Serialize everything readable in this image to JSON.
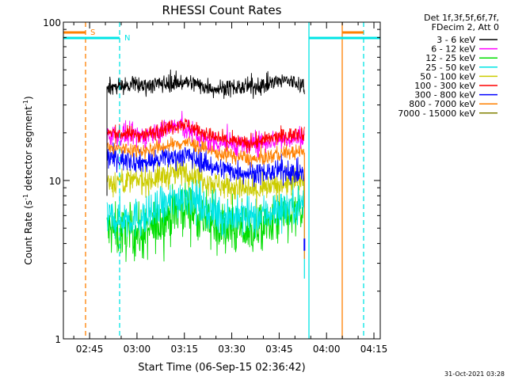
{
  "chart_data": {
    "type": "line",
    "title": "RHESSI Count Rates",
    "xlabel": "Start Time (06-Sep-15 02:36:42)",
    "ylabel_main": "Count Rate (s",
    "ylabel_sup1": "-1",
    "ylabel_mid": " detector segment",
    "ylabel_sup2": "-1",
    "ylabel_end": ")",
    "y_scale": "log",
    "ylim": [
      1,
      100
    ],
    "xlim": [
      "02:36:42",
      "04:17:00"
    ],
    "data_span": [
      "02:50:30",
      "03:53:00"
    ],
    "x_ticks": [
      "02:45",
      "03:00",
      "03:15",
      "03:30",
      "03:45",
      "04:00",
      "04:15"
    ],
    "y_ticks": [
      "1",
      "10",
      "100"
    ],
    "legend_header": [
      "Det 1f,3f,5f,6f,7f,",
      "FDecim 2, Att 0"
    ],
    "legend_position": "right",
    "series": [
      {
        "name": "3 - 6 keV",
        "color": "#000000",
        "keys": [
          [
            0,
            39
          ],
          [
            0.2,
            40
          ],
          [
            0.4,
            42
          ],
          [
            0.55,
            38
          ],
          [
            0.75,
            39
          ],
          [
            0.9,
            43
          ],
          [
            1,
            40
          ]
        ],
        "noise": 0.04
      },
      {
        "name": "6 - 12 keV",
        "color": "#ff00ff",
        "keys": [
          [
            0,
            19.5
          ],
          [
            0.2,
            19
          ],
          [
            0.35,
            22.5
          ],
          [
            0.5,
            18
          ],
          [
            0.7,
            16.5
          ],
          [
            0.85,
            18
          ],
          [
            1,
            19
          ]
        ],
        "noise": 0.05
      },
      {
        "name": "12 - 25 keV",
        "color": "#00dd00",
        "keys": [
          [
            0,
            4.8
          ],
          [
            0.2,
            4.6
          ],
          [
            0.4,
            7
          ],
          [
            0.55,
            5
          ],
          [
            0.75,
            4.8
          ],
          [
            0.9,
            5.8
          ],
          [
            1,
            6.5
          ]
        ],
        "noise": 0.12
      },
      {
        "name": "25 - 50 keV",
        "color": "#00e5e5",
        "keys": [
          [
            0,
            5.8
          ],
          [
            0.2,
            5.8
          ],
          [
            0.4,
            8.2
          ],
          [
            0.55,
            6
          ],
          [
            0.75,
            5.8
          ],
          [
            0.9,
            6.8
          ],
          [
            1,
            7.2
          ]
        ],
        "noise": 0.09
      },
      {
        "name": "50 - 100 keV",
        "color": "#cccc00",
        "keys": [
          [
            0,
            9.8
          ],
          [
            0.2,
            10
          ],
          [
            0.4,
            11.5
          ],
          [
            0.55,
            9.5
          ],
          [
            0.75,
            8.5
          ],
          [
            0.9,
            9.5
          ],
          [
            1,
            10
          ]
        ],
        "noise": 0.06
      },
      {
        "name": "100 - 300 keV",
        "color": "#ff0000",
        "keys": [
          [
            0,
            20
          ],
          [
            0.2,
            19.5
          ],
          [
            0.38,
            23
          ],
          [
            0.55,
            18.5
          ],
          [
            0.72,
            17
          ],
          [
            0.88,
            19
          ],
          [
            1,
            20
          ]
        ],
        "noise": 0.035
      },
      {
        "name": "300 - 800 keV",
        "color": "#0000ff",
        "keys": [
          [
            0,
            14
          ],
          [
            0.2,
            13
          ],
          [
            0.4,
            14.5
          ],
          [
            0.55,
            12
          ],
          [
            0.75,
            11
          ],
          [
            0.9,
            11.5
          ],
          [
            1,
            11
          ]
        ],
        "noise": 0.05
      },
      {
        "name": "800 - 7000 keV",
        "color": "#ff8000",
        "keys": [
          [
            0,
            16
          ],
          [
            0.2,
            15.5
          ],
          [
            0.4,
            17.5
          ],
          [
            0.55,
            15
          ],
          [
            0.75,
            13.5
          ],
          [
            0.9,
            15
          ],
          [
            1,
            15
          ]
        ],
        "noise": 0.035
      },
      {
        "name": "7000 - 15000 keV",
        "color": "#808000",
        "keys": [
          [
            0,
            0
          ],
          [
            1,
            0
          ]
        ],
        "noise": 0
      }
    ],
    "annotations": {
      "top_left_labels": [
        "S",
        "N"
      ],
      "top_bar_colors": [
        "#ff8000",
        "#00e5e5"
      ]
    }
  },
  "timestamp": "31-Oct-2021 03:28"
}
